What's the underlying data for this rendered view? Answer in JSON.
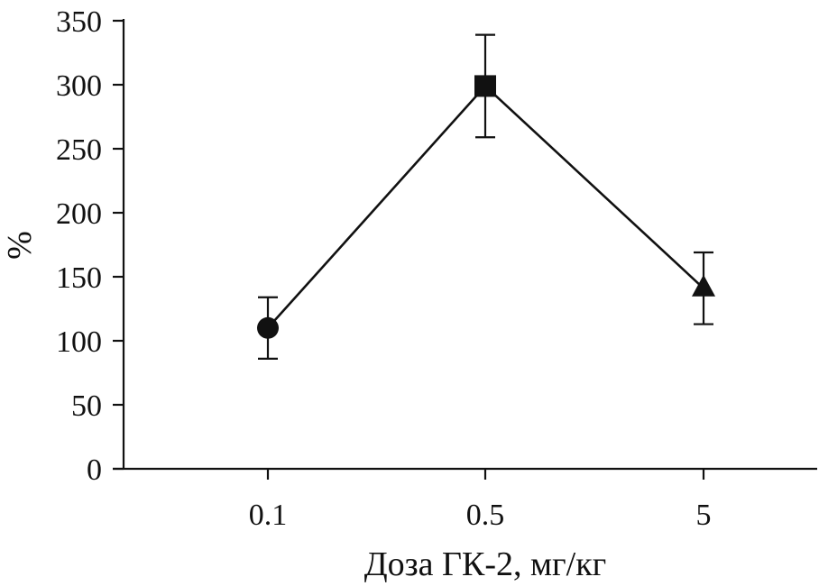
{
  "chart_data": {
    "type": "line",
    "xlabel": "Доза ГК-2, мг/кг",
    "ylabel": "%",
    "categories": [
      "0.1",
      "0.5",
      "5"
    ],
    "ylim": [
      0,
      350
    ],
    "yticks": [
      "0",
      "50",
      "100",
      "150",
      "200",
      "250",
      "300",
      "350"
    ],
    "grid": false,
    "series": [
      {
        "values": [
          110,
          299,
          141
        ],
        "errors": [
          24,
          40,
          28
        ],
        "markers": [
          "circle",
          "square",
          "triangle"
        ]
      }
    ],
    "colors": {
      "line": "#111111",
      "marker": "#111111"
    }
  }
}
